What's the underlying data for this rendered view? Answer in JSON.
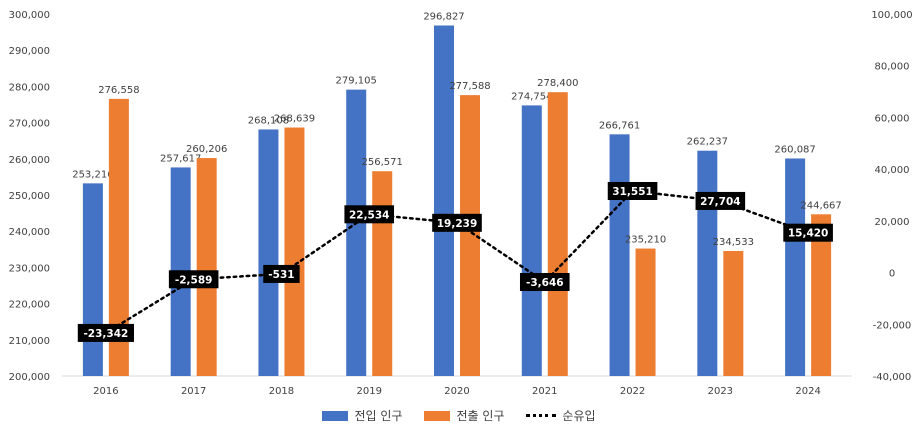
{
  "chart_data": {
    "type": "bar",
    "categories": [
      "2016",
      "2017",
      "2018",
      "2019",
      "2020",
      "2021",
      "2022",
      "2023",
      "2024"
    ],
    "series": [
      {
        "name": "전입 인구",
        "type": "bar",
        "axis": "left",
        "color": "#4472C4",
        "values": [
          253216,
          257617,
          268108,
          279105,
          296827,
          274754,
          266761,
          262237,
          260087
        ],
        "labels": [
          "253,216",
          "257,617",
          "268,108",
          "279,105",
          "296,827",
          "274,754",
          "266,761",
          "262,237",
          "260,087"
        ]
      },
      {
        "name": "전출 인구",
        "type": "bar",
        "axis": "left",
        "color": "#ED7D31",
        "values": [
          276558,
          260206,
          268639,
          256571,
          277588,
          278400,
          235210,
          234533,
          244667
        ],
        "labels": [
          "276,558",
          "260,206",
          "268,639",
          "256,571",
          "277,588",
          "278,400",
          "235,210",
          "234,533",
          "244,667"
        ]
      },
      {
        "name": "순유입",
        "type": "line",
        "style": "dotted",
        "axis": "right",
        "color": "#000000",
        "values": [
          -23342,
          -2589,
          -531,
          22534,
          19239,
          -3646,
          31551,
          27704,
          15420
        ],
        "labels": [
          "-23,342",
          "-2,589",
          "-531",
          "22,534",
          "19,239",
          "-3,646",
          "31,551",
          "27,704",
          "15,420"
        ]
      }
    ],
    "y_left": {
      "min": 200000,
      "max": 300000,
      "step": 10000,
      "ticks": [
        "200,000",
        "210,000",
        "220,000",
        "230,000",
        "240,000",
        "250,000",
        "260,000",
        "270,000",
        "280,000",
        "290,000",
        "300,000"
      ]
    },
    "y_right": {
      "min": -40000,
      "max": 100000,
      "step": 20000,
      "ticks": [
        "-40,000",
        "-20,000",
        "0",
        "20,000",
        "40,000",
        "60,000",
        "80,000",
        "100,000"
      ]
    },
    "legend_position": "bottom",
    "grid": false
  }
}
